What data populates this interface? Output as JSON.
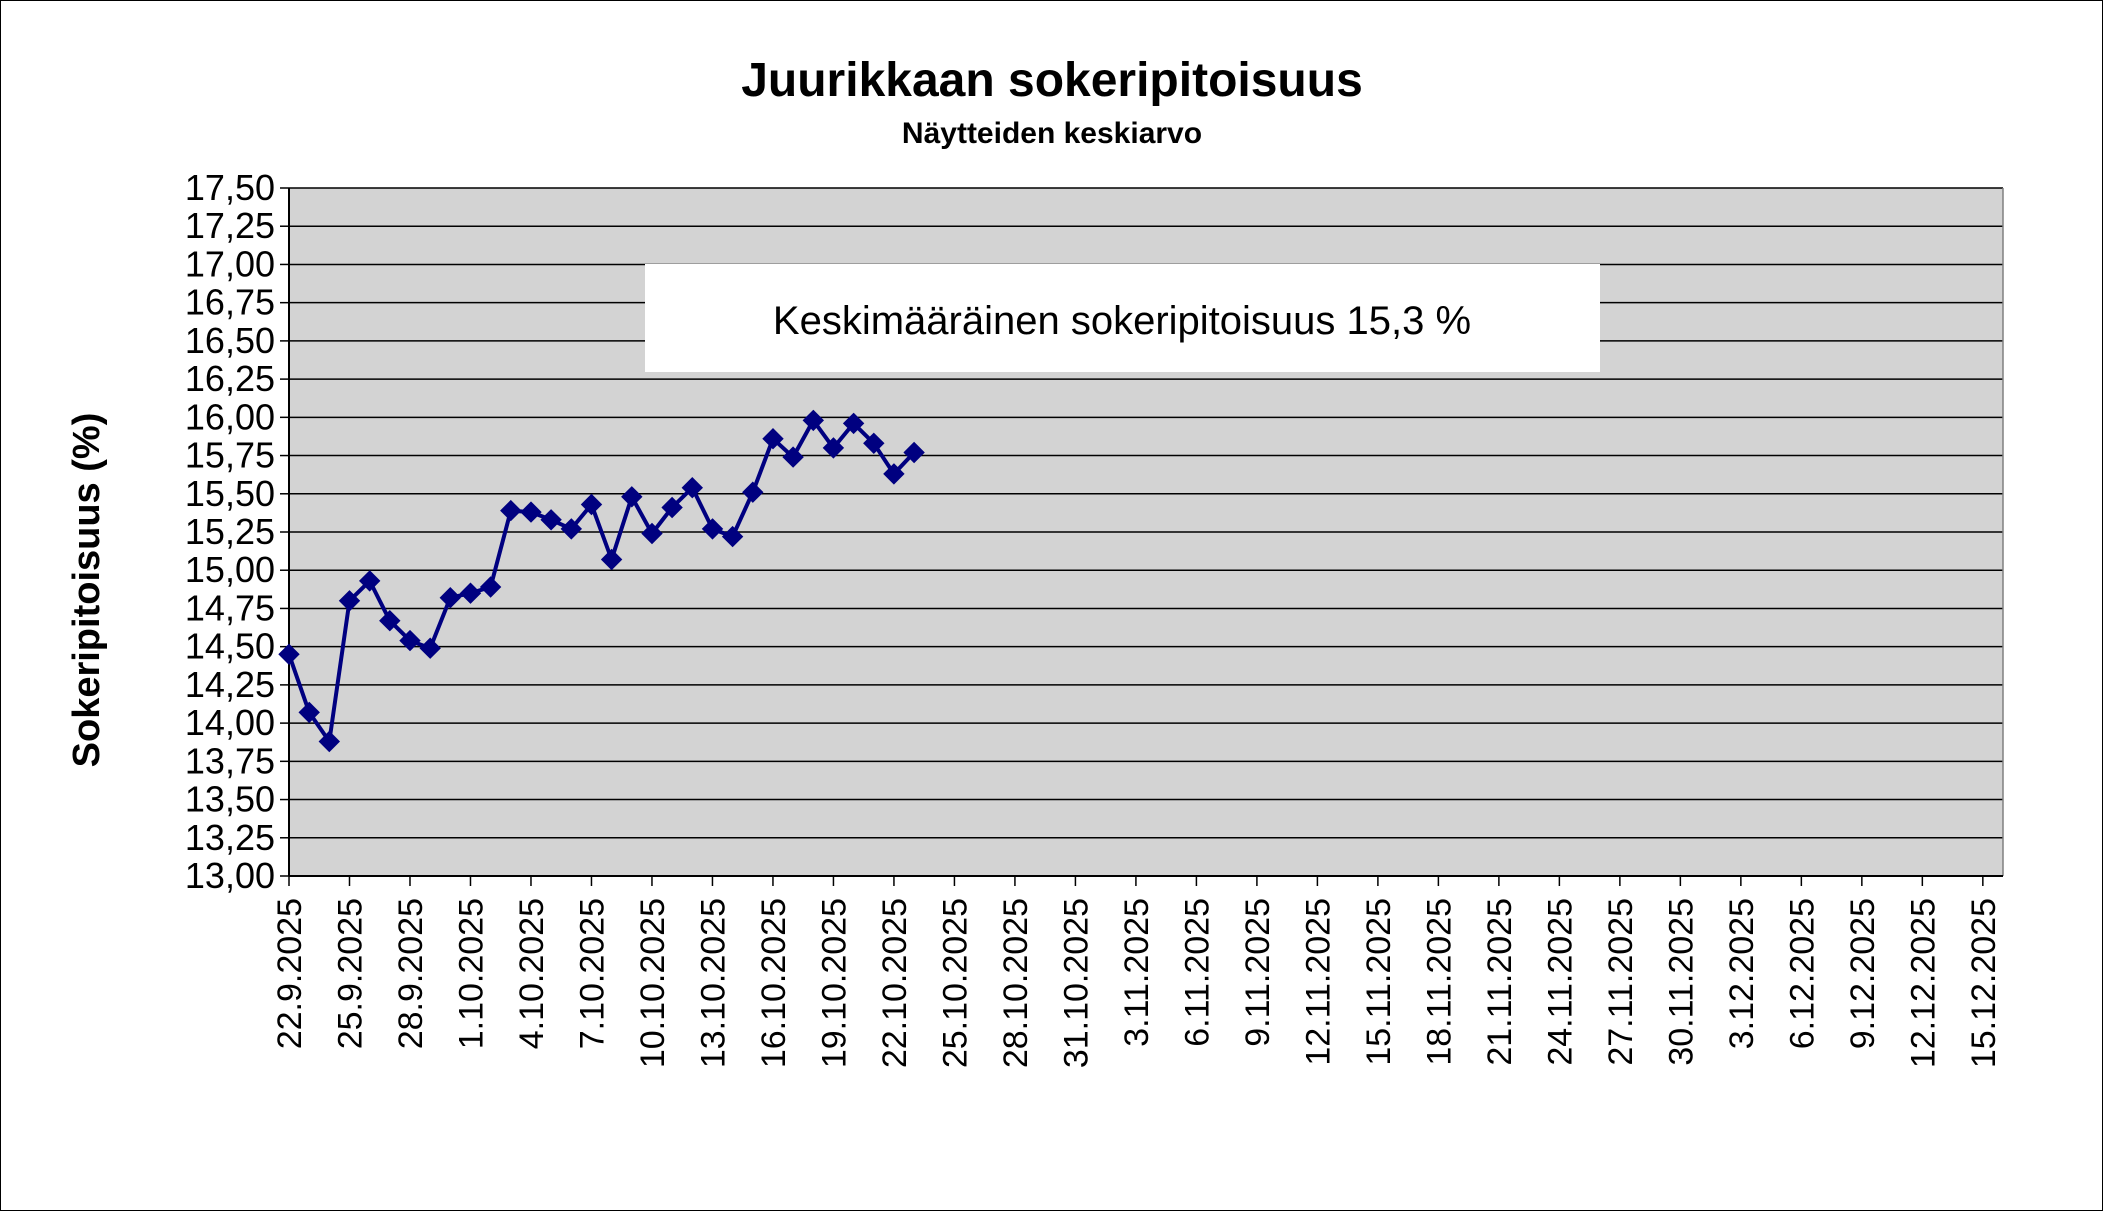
{
  "chart_data": {
    "type": "line",
    "title": "Juurikkaan sokeripitoisuus",
    "subtitle": "Näytteiden keskiarvo",
    "ylabel": "Sokeripitoisuus (%)",
    "xlabel": "",
    "ylim": [
      13.0,
      17.5
    ],
    "xlim": [
      "22.9.2025",
      "16.12.2025"
    ],
    "yticks": [
      "13,00",
      "13,25",
      "13,50",
      "13,75",
      "14,00",
      "14,25",
      "14,50",
      "14,75",
      "15,00",
      "15,25",
      "15,50",
      "15,75",
      "16,00",
      "16,25",
      "16,50",
      "16,75",
      "17,00",
      "17,25",
      "17,50"
    ],
    "xticks": [
      "22.9.2025",
      "25.9.2025",
      "28.9.2025",
      "1.10.2025",
      "4.10.2025",
      "7.10.2025",
      "10.10.2025",
      "13.10.2025",
      "16.10.2025",
      "19.10.2025",
      "22.10.2025",
      "25.10.2025",
      "28.10.2025",
      "31.10.2025",
      "3.11.2025",
      "6.11.2025",
      "9.11.2025",
      "12.11.2025",
      "15.11.2025",
      "18.11.2025",
      "21.11.2025",
      "24.11.2025",
      "27.11.2025",
      "30.11.2025",
      "3.12.2025",
      "6.12.2025",
      "9.12.2025",
      "12.12.2025",
      "15.12.2025"
    ],
    "grid": true,
    "annotation": "Keskimääräinen sokeripitoisuus 15,3 %",
    "series": [
      {
        "color": "#000080",
        "marker": "diamond",
        "x": [
          "22.9.2025",
          "23.9.2025",
          "24.9.2025",
          "25.9.2025",
          "26.9.2025",
          "27.9.2025",
          "28.9.2025",
          "29.9.2025",
          "30.9.2025",
          "1.10.2025",
          "2.10.2025",
          "3.10.2025",
          "4.10.2025",
          "5.10.2025",
          "6.10.2025",
          "7.10.2025",
          "8.10.2025",
          "9.10.2025",
          "10.10.2025",
          "11.10.2025",
          "12.10.2025",
          "13.10.2025",
          "14.10.2025",
          "15.10.2025",
          "16.10.2025",
          "17.10.2025",
          "18.10.2025",
          "19.10.2025",
          "20.10.2025",
          "21.10.2025",
          "22.10.2025",
          "23.10.2025"
        ],
        "values": [
          14.45,
          14.07,
          13.88,
          14.8,
          14.93,
          14.67,
          14.54,
          14.49,
          14.82,
          14.85,
          14.89,
          15.39,
          15.38,
          15.33,
          15.27,
          15.43,
          15.07,
          15.48,
          15.24,
          15.41,
          15.54,
          15.27,
          15.22,
          15.51,
          15.86,
          15.74,
          15.98,
          15.8,
          15.96,
          15.83,
          15.63,
          15.77
        ]
      }
    ]
  }
}
